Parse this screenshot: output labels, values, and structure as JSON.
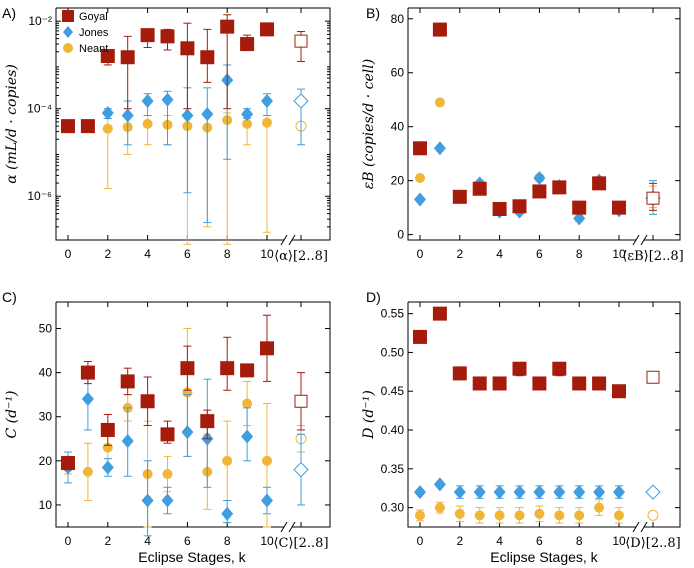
{
  "colors": {
    "Goyal": "#a61c0c",
    "Jones": "#3f9de0",
    "Neant": "#f0b638"
  },
  "legend": [
    "Goyal",
    "Jones",
    "Neant"
  ],
  "xlabel_text": "Eclipse Stages, k",
  "chart_data": [
    {
      "panel": "A)",
      "type": "scatter",
      "yscale": "log",
      "ylabel": "α (mL/d · copies)",
      "ylim": [
        1e-07,
        0.02
      ],
      "yticks": [
        1e-06,
        0.0001,
        0.01
      ],
      "yticklabels": [
        "10⁻⁶",
        "10⁻⁴",
        "10⁻²"
      ],
      "xticks": [
        0,
        2,
        4,
        6,
        8,
        10
      ],
      "avg_label": "⟨α⟩[2..8]",
      "series": [
        {
          "name": "Goyal",
          "x": [
            0,
            1,
            2,
            3,
            4,
            5,
            6,
            7,
            8,
            9,
            10
          ],
          "y": [
            4e-05,
            4e-05,
            0.0016,
            0.0015,
            0.0048,
            0.0045,
            0.0024,
            0.0015,
            0.0075,
            0.003,
            0.0065
          ],
          "lo": [
            3.8e-05,
            3.8e-05,
            0.001,
            0.0001,
            0.0025,
            0.0022,
            0.0001,
            0.0004,
            0.0001,
            0.0022,
            0.0052
          ],
          "hi": [
            4.2e-05,
            4.2e-05,
            0.0022,
            0.0045,
            0.0065,
            0.0065,
            0.009,
            0.0065,
            0.014,
            0.0048,
            0.0085
          ],
          "avg": 0.0035,
          "avg_lo": 0.0012,
          "avg_hi": 0.0058
        },
        {
          "name": "Jones",
          "x": [
            0,
            1,
            2,
            3,
            4,
            5,
            6,
            7,
            8,
            9,
            10
          ],
          "y": [
            4e-05,
            4e-05,
            8e-05,
            7e-05,
            0.00015,
            0.00016,
            7e-05,
            7.5e-05,
            0.00045,
            7.5e-05,
            0.00015
          ],
          "lo": [
            3.8e-05,
            3.8e-05,
            6e-05,
            1.5e-05,
            7e-05,
            1.5e-05,
            1.2e-06,
            2.5e-07,
            7e-06,
            6e-05,
            7e-05
          ],
          "hi": [
            4.2e-05,
            4.2e-05,
            0.0001,
            0.00015,
            0.00022,
            0.00025,
            0.0003,
            0.0003,
            0.001,
            0.0001,
            0.00022
          ],
          "avg": 0.00015,
          "avg_lo": 1.5e-05,
          "avg_hi": 0.00028
        },
        {
          "name": "Neant",
          "x": [
            0,
            1,
            2,
            3,
            4,
            5,
            6,
            7,
            8,
            9,
            10
          ],
          "y": [
            3.8e-05,
            3.8e-05,
            3.5e-05,
            3.8e-05,
            4.5e-05,
            4.3e-05,
            4e-05,
            3.7e-05,
            5.5e-05,
            4.5e-05,
            4.8e-05
          ],
          "lo": [
            3.6e-05,
            3.6e-05,
            1.5e-06,
            9e-06,
            1.5e-05,
            1.5e-05,
            8e-08,
            2e-07,
            8e-08,
            1.5e-05,
            1.5e-07
          ],
          "hi": [
            4e-05,
            4e-05,
            6e-05,
            6.5e-05,
            7e-05,
            7e-05,
            7e-05,
            7e-05,
            8e-05,
            6.5e-05,
            7e-05
          ],
          "avg": 4e-05,
          "avg_lo": 4e-05,
          "avg_hi": 4e-05
        }
      ]
    },
    {
      "panel": "B)",
      "type": "scatter",
      "yscale": "linear",
      "ylabel": "εB (copies/d · cell)",
      "ylim": [
        -2,
        84
      ],
      "yticks": [
        0,
        20,
        40,
        60,
        80
      ],
      "yticklabels": [
        "0",
        "20",
        "40",
        "60",
        "80"
      ],
      "xticks": [
        0,
        2,
        4,
        6,
        8,
        10
      ],
      "avg_label": "⟨εB⟩[2..8]",
      "series": [
        {
          "name": "Goyal",
          "x": [
            0,
            1,
            2,
            3,
            4,
            5,
            6,
            7,
            8,
            9,
            10
          ],
          "y": [
            32,
            76,
            14,
            17,
            9.5,
            10.5,
            16,
            17.5,
            10,
            19,
            10
          ],
          "lo": [
            32,
            76,
            12,
            15,
            8,
            9,
            14,
            16,
            8,
            17,
            8.5
          ],
          "hi": [
            32,
            76,
            16,
            19,
            11,
            12,
            18,
            19,
            12,
            21,
            11.5
          ],
          "avg": 13.5,
          "avg_lo": 9,
          "avg_hi": 19
        },
        {
          "name": "Jones",
          "x": [
            0,
            1,
            2,
            3,
            4,
            5,
            6,
            7,
            8,
            9,
            10
          ],
          "y": [
            13,
            32,
            14,
            19,
            8.5,
            8.5,
            21,
            18,
            6,
            20,
            9
          ],
          "lo": [
            13,
            32,
            13,
            18,
            7.5,
            7.5,
            20,
            17,
            5,
            19,
            8
          ],
          "hi": [
            13,
            32,
            15,
            20,
            9.5,
            9.5,
            22,
            19,
            7,
            21,
            10
          ],
          "avg": 13.5,
          "avg_lo": 7.5,
          "avg_hi": 20
        },
        {
          "name": "Neant",
          "x": [
            0,
            1,
            2,
            3,
            4,
            5,
            6,
            7,
            8,
            9,
            10
          ],
          "y": [
            21,
            49,
            14,
            18,
            9.5,
            10,
            21,
            18,
            10,
            20,
            10
          ],
          "lo": [
            21,
            49,
            13,
            17,
            8.5,
            9,
            20,
            17,
            9,
            19,
            9
          ],
          "hi": [
            21,
            49,
            15,
            19,
            10.5,
            11,
            22,
            19,
            11,
            21,
            11
          ],
          "avg": 14,
          "avg_lo": 10,
          "avg_hi": 18
        }
      ]
    },
    {
      "panel": "C)",
      "type": "scatter",
      "yscale": "linear",
      "ylabel": "C (d⁻¹)",
      "ylim": [
        5,
        56
      ],
      "yticks": [
        10,
        20,
        30,
        40,
        50
      ],
      "yticklabels": [
        "10",
        "20",
        "30",
        "40",
        "50"
      ],
      "xticks": [
        0,
        2,
        4,
        6,
        8,
        10
      ],
      "avg_label": "⟨C⟩[2..8]",
      "series": [
        {
          "name": "Goyal",
          "x": [
            0,
            1,
            2,
            3,
            4,
            5,
            6,
            7,
            8,
            9,
            10
          ],
          "y": [
            19.5,
            40,
            27,
            38,
            33.5,
            26,
            41,
            29,
            41,
            40.5,
            45.5
          ],
          "lo": [
            18,
            37.5,
            23.5,
            35,
            28,
            24,
            36,
            25,
            36,
            40,
            38
          ],
          "hi": [
            21,
            42.5,
            30.5,
            41,
            39,
            29,
            46,
            31.5,
            48,
            41,
            53
          ],
          "avg": 33.5,
          "avg_lo": 27,
          "avg_hi": 40
        },
        {
          "name": "Jones",
          "x": [
            0,
            1,
            2,
            3,
            4,
            5,
            6,
            7,
            8,
            9,
            10
          ],
          "y": [
            18.5,
            34,
            18.5,
            24.5,
            11,
            11,
            26.5,
            25,
            8,
            25.5,
            11
          ],
          "lo": [
            15,
            27,
            16.5,
            16.5,
            3,
            8,
            21,
            14,
            6,
            20,
            8
          ],
          "hi": [
            22,
            41,
            20.5,
            32,
            20,
            14,
            35,
            38.5,
            11,
            32,
            14
          ],
          "avg": 18,
          "avg_lo": 10,
          "avg_hi": 26
        },
        {
          "name": "Neant",
          "x": [
            0,
            1,
            2,
            3,
            4,
            5,
            6,
            7,
            8,
            9,
            10
          ],
          "y": [
            18.5,
            17.5,
            23,
            32,
            17,
            17,
            35.5,
            17.5,
            20,
            33,
            20
          ],
          "lo": [
            17,
            11,
            20.5,
            29,
            5,
            13,
            21,
            9,
            11,
            28,
            5
          ],
          "hi": [
            20,
            24,
            25.5,
            35,
            29,
            21,
            50,
            26,
            29,
            38,
            33
          ],
          "avg": 25,
          "avg_lo": 22,
          "avg_hi": 28
        }
      ]
    },
    {
      "panel": "D)",
      "type": "scatter",
      "yscale": "linear",
      "ylabel": "D (d⁻¹)",
      "ylim": [
        0.275,
        0.565
      ],
      "yticks": [
        0.3,
        0.35,
        0.4,
        0.45,
        0.5,
        0.55
      ],
      "yticklabels": [
        "0.30",
        "0.35",
        "0.40",
        "0.45",
        "0.50",
        "0.55"
      ],
      "xticks": [
        0,
        2,
        4,
        6,
        8,
        10
      ],
      "avg_label": "⟨D⟩[2..8]",
      "series": [
        {
          "name": "Goyal",
          "x": [
            0,
            1,
            2,
            3,
            4,
            5,
            6,
            7,
            8,
            9,
            10
          ],
          "y": [
            0.52,
            0.55,
            0.473,
            0.46,
            0.46,
            0.479,
            0.46,
            0.479,
            0.46,
            0.46,
            0.45
          ],
          "lo": [
            0.515,
            0.545,
            0.465,
            0.452,
            0.452,
            0.47,
            0.452,
            0.47,
            0.452,
            0.452,
            0.445
          ],
          "hi": [
            0.525,
            0.555,
            0.48,
            0.467,
            0.467,
            0.487,
            0.467,
            0.487,
            0.467,
            0.467,
            0.455
          ],
          "avg": 0.468,
          "avg_lo": 0.462,
          "avg_hi": 0.474
        },
        {
          "name": "Jones",
          "x": [
            0,
            1,
            2,
            3,
            4,
            5,
            6,
            7,
            8,
            9,
            10
          ],
          "y": [
            0.32,
            0.33,
            0.32,
            0.32,
            0.32,
            0.32,
            0.32,
            0.32,
            0.32,
            0.32,
            0.32
          ],
          "lo": [
            0.317,
            0.327,
            0.312,
            0.312,
            0.312,
            0.312,
            0.312,
            0.312,
            0.312,
            0.312,
            0.312
          ],
          "hi": [
            0.323,
            0.333,
            0.328,
            0.328,
            0.328,
            0.328,
            0.328,
            0.328,
            0.328,
            0.328,
            0.328
          ],
          "avg": 0.32,
          "avg_lo": 0.32,
          "avg_hi": 0.32
        },
        {
          "name": "Neant",
          "x": [
            0,
            1,
            2,
            3,
            4,
            5,
            6,
            7,
            8,
            9,
            10
          ],
          "y": [
            0.29,
            0.3,
            0.292,
            0.29,
            0.29,
            0.29,
            0.292,
            0.29,
            0.29,
            0.3,
            0.29
          ],
          "lo": [
            0.283,
            0.293,
            0.282,
            0.28,
            0.28,
            0.28,
            0.282,
            0.28,
            0.28,
            0.29,
            0.28
          ],
          "hi": [
            0.297,
            0.307,
            0.302,
            0.3,
            0.3,
            0.3,
            0.302,
            0.3,
            0.3,
            0.31,
            0.3
          ],
          "avg": 0.29,
          "avg_lo": 0.29,
          "avg_hi": 0.29
        }
      ]
    }
  ]
}
